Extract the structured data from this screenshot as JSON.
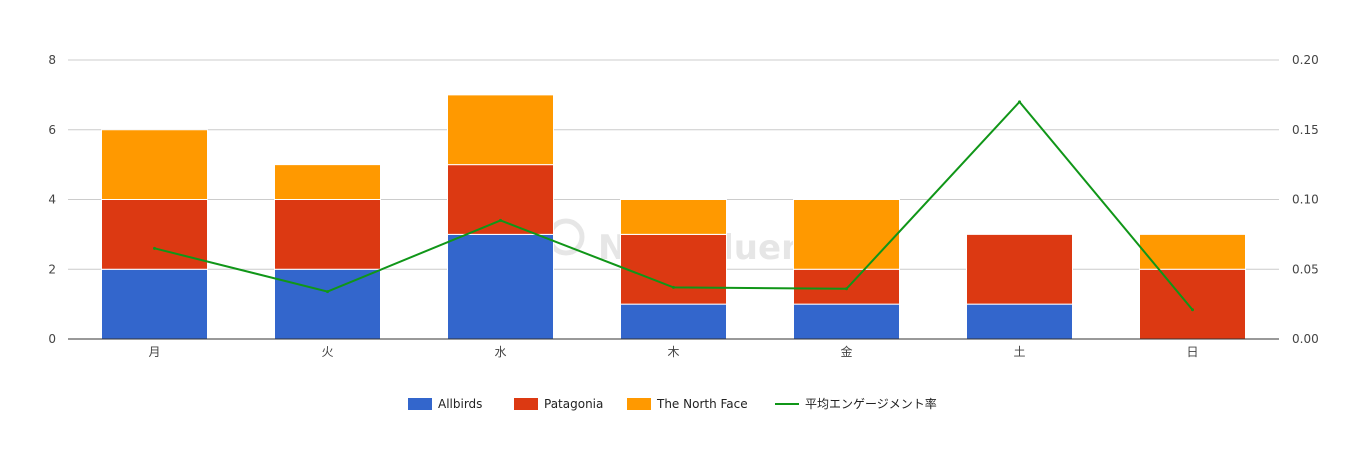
{
  "chart_data": {
    "type": "bar",
    "stacked": true,
    "categories": [
      "月",
      "火",
      "水",
      "木",
      "金",
      "土",
      "日"
    ],
    "series": [
      {
        "name": "Allbirds",
        "type": "bar",
        "axis": "left",
        "color": "#3366cc",
        "values": [
          2,
          2,
          3,
          1,
          1,
          1,
          0
        ]
      },
      {
        "name": "Patagonia",
        "type": "bar",
        "axis": "left",
        "color": "#dc3912",
        "values": [
          2,
          2,
          2,
          2,
          1,
          2,
          2
        ]
      },
      {
        "name": "The North Face",
        "type": "bar",
        "axis": "left",
        "color": "#ff9900",
        "values": [
          2,
          1,
          2,
          1,
          2,
          0,
          1
        ]
      },
      {
        "name": "平均エンゲージメント率",
        "type": "line",
        "axis": "right",
        "color": "#109618",
        "values": [
          0.065,
          0.034,
          0.085,
          0.037,
          0.036,
          0.17,
          0.021
        ]
      }
    ],
    "y_left": {
      "range": [
        0,
        8
      ],
      "ticks": [
        "0",
        "2",
        "4",
        "6",
        "8"
      ]
    },
    "y_right": {
      "range": [
        0,
        0.2
      ],
      "ticks": [
        "0.00",
        "0.05",
        "0.10",
        "0.15",
        "0.20"
      ]
    },
    "grid": true,
    "legend_position": "bottom"
  },
  "watermark": "NoxInfluencer"
}
